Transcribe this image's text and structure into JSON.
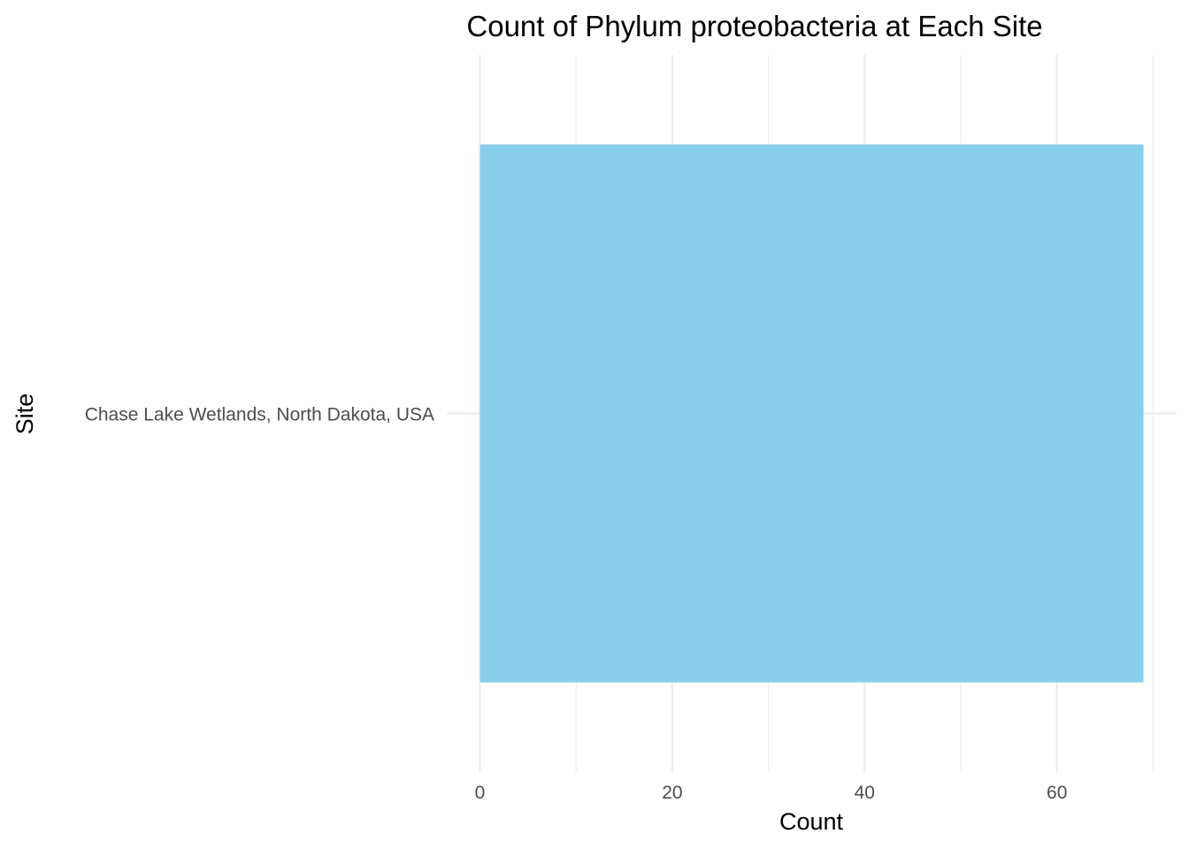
{
  "chart_data": {
    "type": "bar",
    "orientation": "horizontal",
    "title": "Count of Phylum proteobacteria at Each Site",
    "xlabel": "Count",
    "ylabel": "Site",
    "categories": [
      "Chase Lake Wetlands, North Dakota, USA"
    ],
    "values": [
      69
    ],
    "xlim": [
      0,
      70
    ],
    "x_ticks": [
      0,
      20,
      40,
      60
    ],
    "x_minor_ticks": [
      10,
      30,
      50,
      70
    ],
    "grid": true,
    "bar_color": "#87CEEB"
  }
}
